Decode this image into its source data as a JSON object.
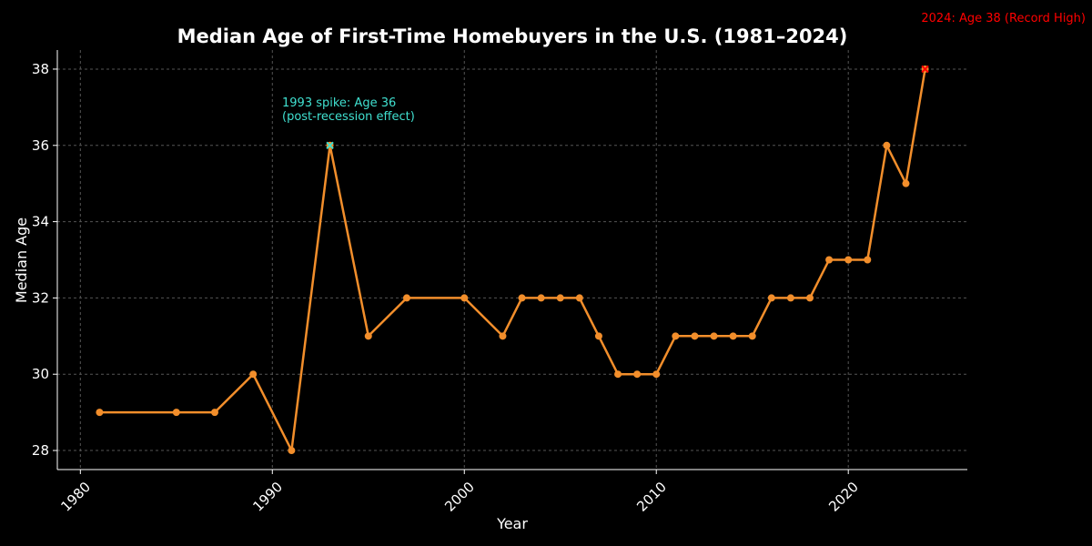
{
  "chart_data": {
    "type": "line",
    "title": "Median Age of First-Time Homebuyers in the U.S. (1981–2024)",
    "xlabel": "Year",
    "ylabel": "Median Age",
    "xlim": [
      1978.8,
      2026.2
    ],
    "ylim": [
      27.5,
      38.5
    ],
    "xticks": [
      1980,
      1990,
      2000,
      2010,
      2020
    ],
    "yticks": [
      28,
      30,
      32,
      34,
      36,
      38
    ],
    "grid": true,
    "series": [
      {
        "name": "Median Age",
        "x": [
          1981,
          1985,
          1987,
          1989,
          1991,
          1993,
          1995,
          1997,
          2000,
          2002,
          2003,
          2004,
          2005,
          2006,
          2007,
          2008,
          2009,
          2010,
          2011,
          2012,
          2013,
          2014,
          2015,
          2016,
          2017,
          2018,
          2019,
          2020,
          2021,
          2022,
          2023,
          2024
        ],
        "y": [
          29,
          29,
          29,
          30,
          28,
          36,
          31,
          32,
          32,
          31,
          32,
          32,
          32,
          32,
          31,
          30,
          30,
          30,
          31,
          31,
          31,
          31,
          31,
          32,
          32,
          32,
          33,
          33,
          33,
          36,
          35,
          38
        ]
      }
    ],
    "annotations": [
      {
        "text_lines": [
          "1993 spike: Age 36",
          "(post-recession effect)"
        ],
        "point": [
          1993,
          36
        ],
        "color": "#40e0d0"
      },
      {
        "text_lines": [
          "2024: Age 38 (Record High)"
        ],
        "point": [
          2024,
          38
        ],
        "color": "#ff0000"
      }
    ]
  },
  "colors": {
    "background": "#000000",
    "line": "#f28e2b",
    "grid": "#555555",
    "axis": "#ffffff",
    "spike": "#40e0d0",
    "record": "#ff0000"
  }
}
